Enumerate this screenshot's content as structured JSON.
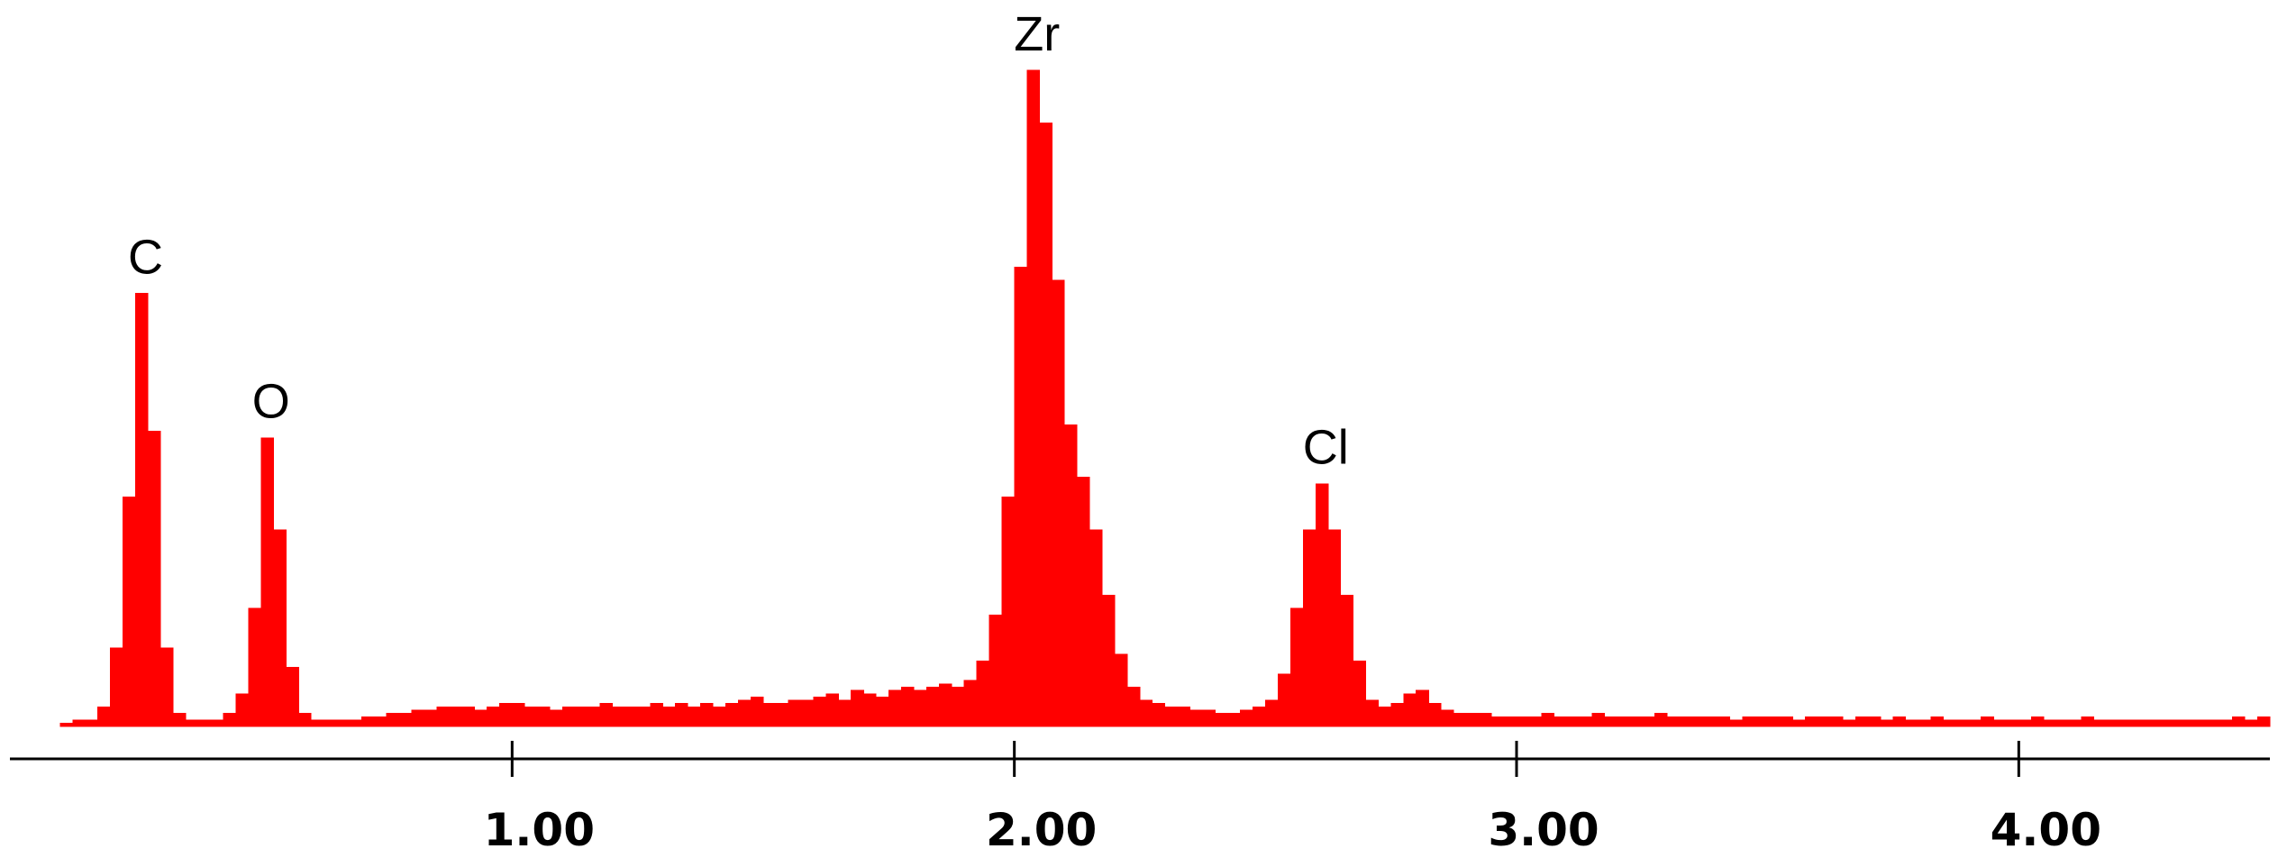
{
  "chart_data": {
    "type": "histogram",
    "color": "#ff0000",
    "bins": [
      0.1,
      0.125,
      0.15,
      0.175,
      0.2,
      0.225,
      0.25,
      0.275,
      0.3,
      0.325,
      0.35,
      0.375,
      0.4,
      0.425,
      0.45,
      0.475,
      0.5,
      0.525,
      0.55,
      0.575,
      0.6,
      0.625,
      0.65,
      0.675,
      0.7,
      0.725,
      0.75,
      0.775,
      0.8,
      0.825,
      0.85,
      0.875,
      0.9,
      0.925,
      0.95,
      0.975,
      1.0,
      1.025,
      1.05,
      1.075,
      1.1,
      1.125,
      1.15,
      1.175,
      1.2,
      1.225,
      1.25,
      1.275,
      1.3,
      1.325,
      1.35,
      1.375,
      1.4,
      1.425,
      1.45,
      1.475,
      1.5,
      1.525,
      1.55,
      1.575,
      1.6,
      1.625,
      1.65,
      1.675,
      1.7,
      1.725,
      1.75,
      1.775,
      1.8,
      1.825,
      1.85,
      1.875,
      1.9,
      1.925,
      1.95,
      1.975,
      2.0,
      2.025,
      2.05,
      2.075,
      2.1,
      2.125,
      2.15,
      2.175,
      2.2,
      2.225,
      2.25,
      2.275,
      2.3,
      2.325,
      2.35,
      2.375,
      2.4,
      2.425,
      2.45,
      2.475,
      2.5,
      2.525,
      2.55,
      2.575,
      2.6,
      2.625,
      2.65,
      2.675,
      2.7,
      2.725,
      2.75,
      2.775,
      2.8,
      2.825,
      2.85,
      2.875,
      2.9,
      2.925,
      2.95,
      2.975,
      3.0,
      3.025,
      3.05,
      3.075,
      3.1,
      3.125,
      3.15,
      3.175,
      3.2,
      3.225,
      3.25,
      3.275,
      3.3,
      3.325,
      3.35,
      3.375,
      3.4,
      3.425,
      3.45,
      3.475,
      3.5,
      3.525,
      3.55,
      3.575,
      3.6,
      3.625,
      3.65,
      3.675,
      3.7,
      3.725,
      3.75,
      3.775,
      3.8,
      3.825,
      3.85,
      3.875,
      3.9,
      3.925,
      3.95,
      3.975,
      4.0,
      4.025,
      4.05,
      4.075,
      4.1,
      4.125,
      4.15,
      4.175,
      4.2,
      4.225,
      4.25,
      4.275,
      4.3,
      4.325,
      4.35,
      4.375,
      4.4,
      4.425,
      4.45,
      4.475,
      4.5
    ],
    "values": [
      0.5,
      1,
      1,
      3,
      12,
      35,
      66,
      45,
      12,
      2,
      1,
      1,
      1,
      2,
      5,
      18,
      44,
      30,
      9,
      2,
      1,
      1,
      1,
      1,
      1.5,
      1.5,
      2,
      2,
      2.5,
      2.5,
      3,
      3,
      3,
      2.5,
      3,
      3.5,
      3.5,
      3,
      3,
      2.5,
      3,
      3,
      3,
      3.5,
      3,
      3,
      3,
      3.5,
      3,
      3.5,
      3,
      3.5,
      3,
      3.5,
      4,
      4.5,
      3.5,
      3.5,
      4,
      4,
      4.5,
      5,
      4,
      5.5,
      5,
      4.5,
      5.5,
      6,
      5.5,
      6,
      6.5,
      6,
      7,
      10,
      17,
      35,
      70,
      100,
      92,
      68,
      46,
      38,
      30,
      20,
      11,
      6,
      4,
      3.5,
      3,
      3,
      2.5,
      2.5,
      2,
      2,
      2.5,
      3,
      4,
      8,
      18,
      30,
      37,
      30,
      20,
      10,
      4,
      3,
      3.5,
      5,
      5.5,
      3.5,
      2.5,
      2,
      2,
      2,
      1.5,
      1.5,
      1.5,
      1.5,
      2,
      1.5,
      1.5,
      1.5,
      2,
      1.5,
      1.5,
      1.5,
      1.5,
      2,
      1.5,
      1.5,
      1.5,
      1.5,
      1.5,
      1,
      1.5,
      1.5,
      1.5,
      1.5,
      1,
      1.5,
      1.5,
      1.5,
      1,
      1.5,
      1.5,
      1,
      1.5,
      1,
      1,
      1.5,
      1,
      1,
      1,
      1.5,
      1,
      1,
      1,
      1.5,
      1,
      1,
      1,
      1.5,
      1,
      1,
      1,
      1,
      1,
      1,
      1,
      1,
      1,
      1,
      1,
      1.5,
      1,
      1.5
    ],
    "xlim": [
      0,
      4.5
    ],
    "ylim": [
      0,
      100
    ],
    "xticks": [
      {
        "value": 1,
        "label": "1.00"
      },
      {
        "value": 2,
        "label": "2.00"
      },
      {
        "value": 3,
        "label": "3.00"
      },
      {
        "value": 4,
        "label": "4.00"
      }
    ],
    "peaks": [
      {
        "label": "C",
        "energy": 0.27
      },
      {
        "label": "O",
        "energy": 0.52
      },
      {
        "label": "Zr",
        "energy": 2.045
      },
      {
        "label": "Cl",
        "energy": 2.62
      }
    ]
  }
}
